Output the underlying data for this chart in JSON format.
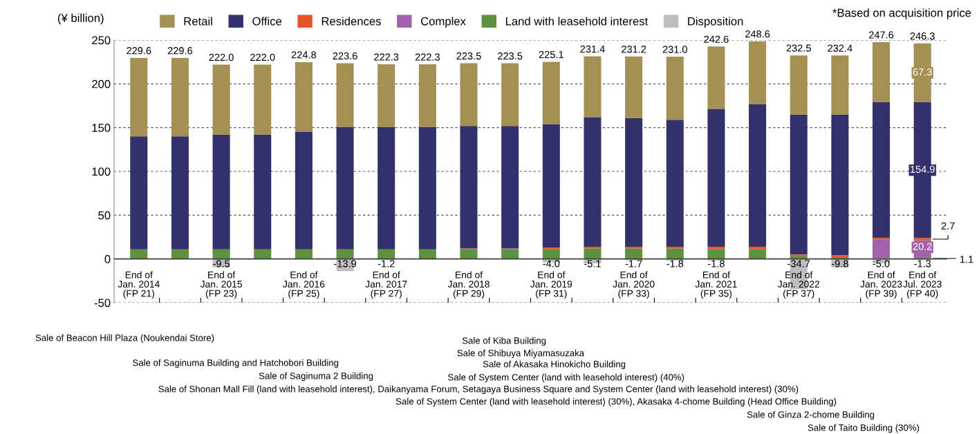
{
  "chart_data": [
    {
      "type": "bar",
      "stacked": true,
      "ylabel": "(¥ billion)",
      "ylim": [
        -50,
        250
      ],
      "yticks": [
        -50,
        0,
        50,
        100,
        150,
        200,
        250
      ],
      "grid": "y",
      "legend": "top",
      "categories": [
        "End of\nJan. 2014\n(FP 21)",
        null,
        "End of\nJan. 2015\n(FP 23)",
        null,
        "End of\nJan. 2016\n(FP 25)",
        null,
        "End of\nJan. 2017\n(FP 27)",
        null,
        "End of\nJan. 2018\n(FP 29)",
        null,
        "End of\nJan. 2019\n(FP 31)",
        null,
        "End of\nJan. 2020\n(FP 33)",
        null,
        "End of\nJan. 2021\n(FP 35)",
        null,
        "End of\nJan. 2022\n(FP 37)",
        null,
        "End of\nJan. 2023\n(FP 39)",
        "End of\nJul. 2023\n(FP 40)"
      ],
      "series": [
        {
          "name": "Land with leasehold interest",
          "color": "#5e9140",
          "values": [
            11,
            11,
            11,
            11,
            11,
            11,
            11,
            11,
            11,
            11,
            11,
            12,
            12,
            12,
            11,
            11,
            3,
            2,
            1,
            1.1
          ],
          "value_labels": [
            null,
            null,
            null,
            null,
            null,
            null,
            null,
            null,
            null,
            null,
            null,
            null,
            null,
            null,
            null,
            null,
            null,
            null,
            null,
            "1.1"
          ]
        },
        {
          "name": "Complex",
          "color": "#a263ab",
          "values": [
            0,
            0,
            0,
            0,
            0,
            0,
            0,
            0,
            0,
            0,
            0,
            0,
            0,
            0,
            0,
            0,
            0,
            0,
            21,
            20.2
          ],
          "value_labels": [
            null,
            null,
            null,
            null,
            null,
            null,
            null,
            null,
            null,
            null,
            null,
            null,
            null,
            null,
            null,
            null,
            null,
            null,
            null,
            "20.2"
          ]
        },
        {
          "name": "Residences",
          "color": "#e8542a",
          "values": [
            0,
            0,
            0,
            0,
            0,
            0,
            0,
            0,
            1,
            1,
            2,
            2,
            2,
            2,
            3,
            3,
            2,
            2,
            2,
            2.7
          ],
          "value_labels": [
            null,
            null,
            null,
            null,
            null,
            null,
            null,
            null,
            null,
            null,
            null,
            null,
            null,
            null,
            null,
            null,
            null,
            null,
            null,
            "2.7"
          ]
        },
        {
          "name": "Office",
          "color": "#33316b",
          "values": [
            129,
            129,
            131,
            131,
            134,
            140,
            140,
            140,
            140,
            140,
            141,
            148,
            147,
            145,
            157,
            163,
            160,
            161,
            155,
            154.9
          ],
          "value_labels": [
            null,
            null,
            null,
            null,
            null,
            null,
            null,
            null,
            null,
            null,
            null,
            null,
            null,
            null,
            null,
            null,
            null,
            null,
            null,
            "154.9"
          ]
        },
        {
          "name": "Retail",
          "color": "#a59053",
          "values": [
            89.6,
            89.6,
            80.0,
            80.0,
            79.8,
            72.6,
            71.3,
            71.3,
            71.5,
            71.5,
            71.1,
            69.4,
            70.2,
            72.0,
            71.6,
            71.6,
            67.5,
            67.4,
            68.6,
            67.3
          ],
          "value_labels": [
            null,
            null,
            null,
            null,
            null,
            null,
            null,
            null,
            null,
            null,
            null,
            null,
            null,
            null,
            null,
            null,
            null,
            null,
            null,
            "67.3"
          ]
        }
      ],
      "totals": [
        "229.6",
        "229.6",
        "222.0",
        "222.0",
        "224.8",
        "223.6",
        "222.3",
        "222.3",
        "223.5",
        "223.5",
        "225.1",
        "231.4",
        "231.2",
        "231.0",
        "242.6",
        "248.6",
        "232.5",
        "232.4",
        "247.6",
        "246.3"
      ],
      "annotations": [
        "*Based on acquisition price",
        "Sale of Beacon Hill Plaza (Noukendai Store)",
        "Sale of Kiba Building",
        "Sale of Shibuya Miyamasuzaka",
        "Sale of Saginuma Building and Hatchobori Building",
        "Sale of Akasaka Hinokicho Building",
        "Sale of Saginuma 2 Building",
        "Sale of System Center (land with leasehold interest) (40%)",
        "Sale of Shonan Mall Fill (land with leasehold interest), Daikanyama Forum, Setagaya Business Square and System Center (land with leasehold interest) (30%)",
        "Sale of System Center (land with leasehold interest) (30%), Akasaka 4-chome Building (Head Office Building)",
        "Sale of Ginza 2-chome Building",
        "Sale of Taito Building (30%)"
      ]
    },
    {
      "type": "bar",
      "ylim": [
        -50,
        250
      ],
      "tick_labels": false,
      "categories": [
        null,
        null,
        null,
        null,
        null,
        null,
        null,
        null,
        null,
        null,
        null,
        null,
        null,
        null,
        null,
        null,
        null,
        null,
        null,
        null
      ],
      "series": [
        {
          "name": "Disposition",
          "color": "#bdbec2",
          "values": [
            0,
            0,
            -9.5,
            0,
            0,
            -13.9,
            -1.2,
            0,
            0,
            0,
            -4.0,
            -5.1,
            -1.7,
            -1.8,
            -1.8,
            0,
            -34.7,
            -9.8,
            -5.0,
            -1.3
          ],
          "value_labels": [
            null,
            null,
            "-9.5",
            null,
            null,
            "-13.9",
            "-1.2",
            null,
            null,
            null,
            "-4.0",
            "-5.1",
            "-1.7",
            "-1.8",
            "-1.8",
            null,
            "-34.7",
            "-9.8",
            "-5.0",
            "-1.3"
          ]
        }
      ]
    }
  ]
}
